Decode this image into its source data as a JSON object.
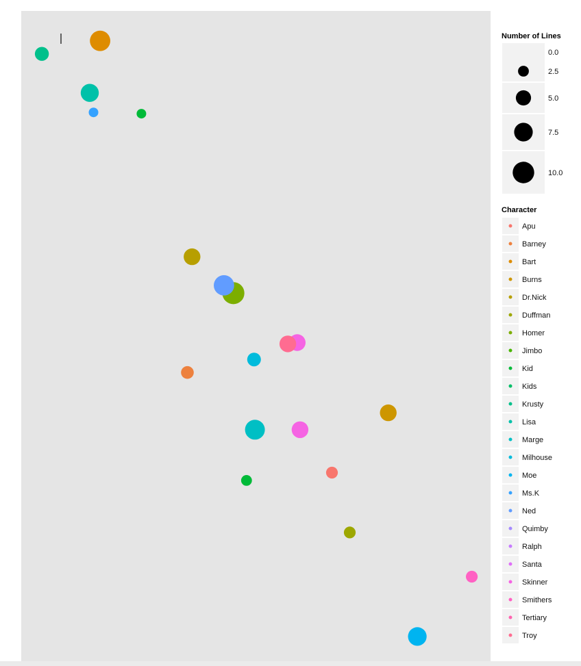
{
  "chart_data": {
    "type": "scatter",
    "title": "",
    "xlabel": "",
    "ylabel": "",
    "x_axis_visible": false,
    "y_axis_visible": false,
    "grid": false,
    "panel_background": "#e5e5e5",
    "size_legend": {
      "title": "Number of Lines",
      "values": [
        0.0,
        2.5,
        5.0,
        7.5,
        10.0
      ],
      "labels": [
        "0.0",
        "2.5",
        "5.0",
        "7.5",
        "10.0"
      ]
    },
    "color_legend": {
      "title": "Character",
      "placement": "right",
      "entries": [
        {
          "name": "Apu",
          "color": "#f8766d"
        },
        {
          "name": "Barney",
          "color": "#ed813e"
        },
        {
          "name": "Bart",
          "color": "#de8c00"
        },
        {
          "name": "Burns",
          "color": "#cd9600"
        },
        {
          "name": "Dr.Nick",
          "color": "#b79f00"
        },
        {
          "name": "Duffman",
          "color": "#9da700"
        },
        {
          "name": "Homer",
          "color": "#7cae00"
        },
        {
          "name": "Jimbo",
          "color": "#49b500"
        },
        {
          "name": "Kid",
          "color": "#00ba38"
        },
        {
          "name": "Kids",
          "color": "#00be67"
        },
        {
          "name": "Krusty",
          "color": "#00c08b"
        },
        {
          "name": "Lisa",
          "color": "#00c1a9"
        },
        {
          "name": "Marge",
          "color": "#00bfc4"
        },
        {
          "name": "Milhouse",
          "color": "#00bbdc"
        },
        {
          "name": "Moe",
          "color": "#00b4f0"
        },
        {
          "name": "Ms.K",
          "color": "#35a2ff"
        },
        {
          "name": "Ned",
          "color": "#619cff"
        },
        {
          "name": "Quimby",
          "color": "#a58aff"
        },
        {
          "name": "Ralph",
          "color": "#c77cff"
        },
        {
          "name": "Santa",
          "color": "#df70f8"
        },
        {
          "name": "Skinner",
          "color": "#f564e3"
        },
        {
          "name": "Smithers",
          "color": "#ff61c3"
        },
        {
          "name": "Tertiary",
          "color": "#ff64b0"
        },
        {
          "name": "Troy",
          "color": "#ff6c91"
        }
      ]
    },
    "x_range": [
      0,
      100
    ],
    "y_range": [
      0,
      100
    ],
    "points": [
      {
        "character": "Bart",
        "color": "#de8c00",
        "x": 16.8,
        "y": 95.4,
        "lines": 9.0
      },
      {
        "character": "Krusty",
        "color": "#00c08b",
        "x": 4.4,
        "y": 93.4,
        "lines": 4.2
      },
      {
        "character": "Lisa",
        "color": "#00c1a9",
        "x": 14.6,
        "y": 87.4,
        "lines": 7.0
      },
      {
        "character": "Ms.K",
        "color": "#35a2ff",
        "x": 15.4,
        "y": 84.4,
        "lines": 2.0
      },
      {
        "character": "Kid",
        "color": "#00ba38",
        "x": 25.6,
        "y": 84.2,
        "lines": 2.0
      },
      {
        "character": "Dr.Nick",
        "color": "#b79f00",
        "x": 36.4,
        "y": 62.2,
        "lines": 6.0
      },
      {
        "character": "Homer",
        "color": "#7cae00",
        "x": 45.2,
        "y": 56.6,
        "lines": 10.5
      },
      {
        "character": "Ned",
        "color": "#619cff",
        "x": 43.2,
        "y": 57.8,
        "lines": 9.0
      },
      {
        "character": "Skinner",
        "color": "#f564e3",
        "x": 58.8,
        "y": 49.0,
        "lines": 6.0
      },
      {
        "character": "Troy",
        "color": "#ff6c91",
        "x": 56.8,
        "y": 48.8,
        "lines": 6.0
      },
      {
        "character": "Milhouse",
        "color": "#00bbdc",
        "x": 49.6,
        "y": 46.4,
        "lines": 4.0
      },
      {
        "character": "Barney",
        "color": "#ed813e",
        "x": 35.4,
        "y": 44.4,
        "lines": 3.5
      },
      {
        "character": "Burns",
        "color": "#cd9600",
        "x": 78.2,
        "y": 38.2,
        "lines": 6.0
      },
      {
        "character": "Marge",
        "color": "#00bfc4",
        "x": 49.8,
        "y": 35.6,
        "lines": 8.5
      },
      {
        "character": "Skinner",
        "color": "#f564e3",
        "x": 59.4,
        "y": 35.6,
        "lines": 6.0
      },
      {
        "character": "Apu",
        "color": "#f8766d",
        "x": 66.2,
        "y": 29.0,
        "lines": 3.0
      },
      {
        "character": "Kid",
        "color": "#00ba38",
        "x": 48.0,
        "y": 27.8,
        "lines": 2.5
      },
      {
        "character": "Duffman",
        "color": "#9da700",
        "x": 70.0,
        "y": 19.8,
        "lines": 3.0
      },
      {
        "character": "Smithers",
        "color": "#ff61c3",
        "x": 96.0,
        "y": 13.0,
        "lines": 3.0
      },
      {
        "character": "Moe",
        "color": "#00b4f0",
        "x": 84.4,
        "y": 3.8,
        "lines": 7.5
      }
    ]
  }
}
